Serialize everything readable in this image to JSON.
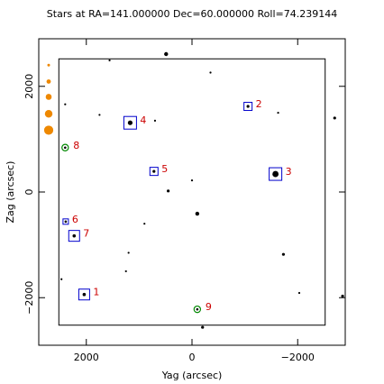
{
  "chart_data": {
    "type": "scatter",
    "title": "Stars at RA=141.000000 Dec=60.000000 Roll=74.239144",
    "xlabel": "Yag (arcsec)",
    "ylabel": "Zag (arcsec)",
    "xlim": [
      2900,
      -2900
    ],
    "ylim": [
      -2900,
      2900
    ],
    "x_ticks": [
      {
        "value": 2000,
        "label": "2000"
      },
      {
        "value": 0,
        "label": "0"
      },
      {
        "value": -2000,
        "label": "−2000"
      }
    ],
    "y_ticks": [
      {
        "value": 2000,
        "label": "2000"
      },
      {
        "value": 0,
        "label": "0"
      },
      {
        "value": -2000,
        "label": "−2000"
      }
    ],
    "field_box": {
      "yag": [
        2520,
        -2520
      ],
      "zag": [
        2520,
        -2520
      ]
    },
    "colors": {
      "star": "#000000",
      "guide_box": "#0000cc",
      "guide_label": "#cc0000",
      "acq_circle": "#008800",
      "legend_mag": "#ee8800",
      "frame": "#000000"
    },
    "legend_mag_dots": [
      {
        "zag": 2400
      },
      {
        "zag": 2090
      },
      {
        "zag": 1800
      },
      {
        "zag": 1480
      },
      {
        "zag": 1170
      }
    ],
    "selected_stars": [
      {
        "id": "1",
        "yag": 2040,
        "zag": -1940,
        "kind": "guide"
      },
      {
        "id": "2",
        "yag": -1060,
        "zag": 1620,
        "kind": "guide"
      },
      {
        "id": "3",
        "yag": -1580,
        "zag": 340,
        "kind": "guide"
      },
      {
        "id": "4",
        "yag": 1170,
        "zag": 1310,
        "kind": "guide"
      },
      {
        "id": "5",
        "yag": 720,
        "zag": 390,
        "kind": "guide"
      },
      {
        "id": "6",
        "yag": 2390,
        "zag": -560,
        "kind": "guide"
      },
      {
        "id": "7",
        "yag": 2230,
        "zag": -830,
        "kind": "guide"
      },
      {
        "id": "8",
        "yag": 2400,
        "zag": 840,
        "kind": "acq"
      },
      {
        "id": "9",
        "yag": -100,
        "zag": -2220,
        "kind": "acq"
      }
    ],
    "field_stars": [
      {
        "yag": 2400,
        "zag": 1660,
        "mag": 1
      },
      {
        "yag": 1560,
        "zag": 2490,
        "mag": 1
      },
      {
        "yag": 490,
        "zag": 2610,
        "mag": 3
      },
      {
        "yag": -350,
        "zag": 2260,
        "mag": 1
      },
      {
        "yag": 1750,
        "zag": 1460,
        "mag": 1
      },
      {
        "yag": 700,
        "zag": 1350,
        "mag": 1
      },
      {
        "yag": -1630,
        "zag": 1500,
        "mag": 1
      },
      {
        "yag": -2700,
        "zag": 1400,
        "mag": 2
      },
      {
        "yag": 0,
        "zag": 220,
        "mag": 1
      },
      {
        "yag": 450,
        "zag": 20,
        "mag": 2
      },
      {
        "yag": -100,
        "zag": -410,
        "mag": 3
      },
      {
        "yag": 900,
        "zag": -600,
        "mag": 1
      },
      {
        "yag": 1200,
        "zag": -1150,
        "mag": 1
      },
      {
        "yag": 1250,
        "zag": -1500,
        "mag": 1
      },
      {
        "yag": -1730,
        "zag": -1180,
        "mag": 2
      },
      {
        "yag": 2470,
        "zag": -1650,
        "mag": 1
      },
      {
        "yag": -2030,
        "zag": -1910,
        "mag": 1
      },
      {
        "yag": -200,
        "zag": -2560,
        "mag": 2
      },
      {
        "yag": -2850,
        "zag": -1970,
        "mag": 2
      }
    ]
  }
}
